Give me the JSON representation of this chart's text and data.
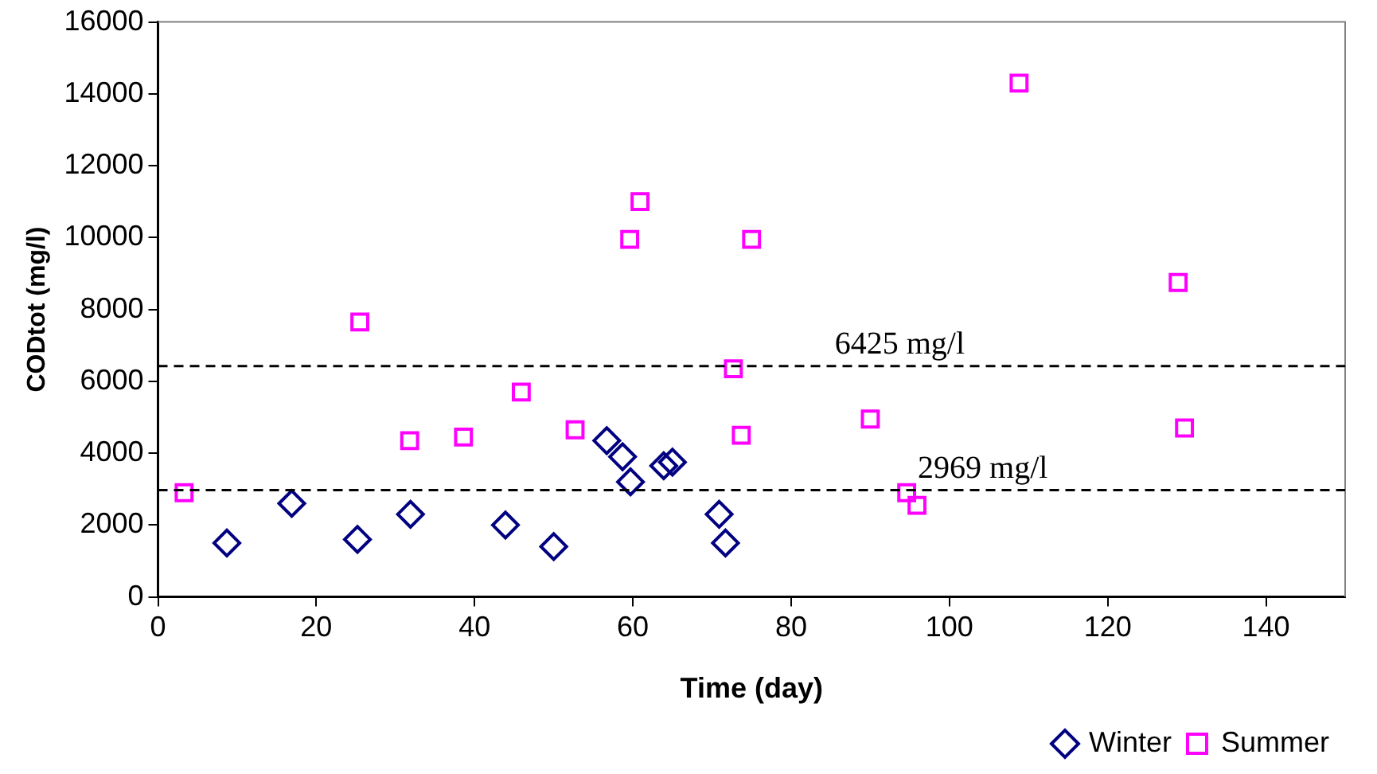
{
  "chart_data": {
    "type": "scatter",
    "xlabel": "Time (day)",
    "ylabel": "CODtot (mg/l)",
    "xlim": [
      0,
      150
    ],
    "xticks": [
      0,
      20,
      40,
      60,
      80,
      100,
      120,
      140
    ],
    "ylim": [
      0,
      16000
    ],
    "yticks": [
      0,
      2000,
      4000,
      6000,
      8000,
      10000,
      12000,
      14000,
      16000
    ],
    "grid": false,
    "legend": "bottom right",
    "series": [
      {
        "name": "Winter",
        "color": "#000080",
        "marker": "diamond",
        "x": [
          8.7,
          16.9,
          25.2,
          31.9,
          43.9,
          50,
          56.7,
          58.7,
          59.7,
          63.9,
          65,
          70.9,
          71.7
        ],
        "values": [
          1500,
          2600,
          1600,
          2300,
          2000,
          1400,
          4350,
          3900,
          3200,
          3650,
          3750,
          2300,
          1500
        ]
      },
      {
        "name": "Summer",
        "color": "#ff00ff",
        "marker": "square",
        "x": [
          3.3,
          25.5,
          31.8,
          38.6,
          45.9,
          52.7,
          59.6,
          60.9,
          72.7,
          73.7,
          75,
          90,
          94.6,
          95.9,
          108.8,
          128.9,
          129.7
        ],
        "values": [
          2900,
          7650,
          4350,
          4450,
          5700,
          4650,
          9950,
          11000,
          6350,
          4500,
          9950,
          4950,
          2900,
          2550,
          14300,
          8750,
          4700
        ]
      }
    ],
    "ref_lines": [
      {
        "axis": "y",
        "value": 6425,
        "label": "6425 mg/l",
        "line_style": "dashed",
        "color": "#000000"
      },
      {
        "axis": "y",
        "value": 2969,
        "label": "2969 mg/l",
        "line_style": "dashed",
        "color": "#000000"
      }
    ]
  }
}
